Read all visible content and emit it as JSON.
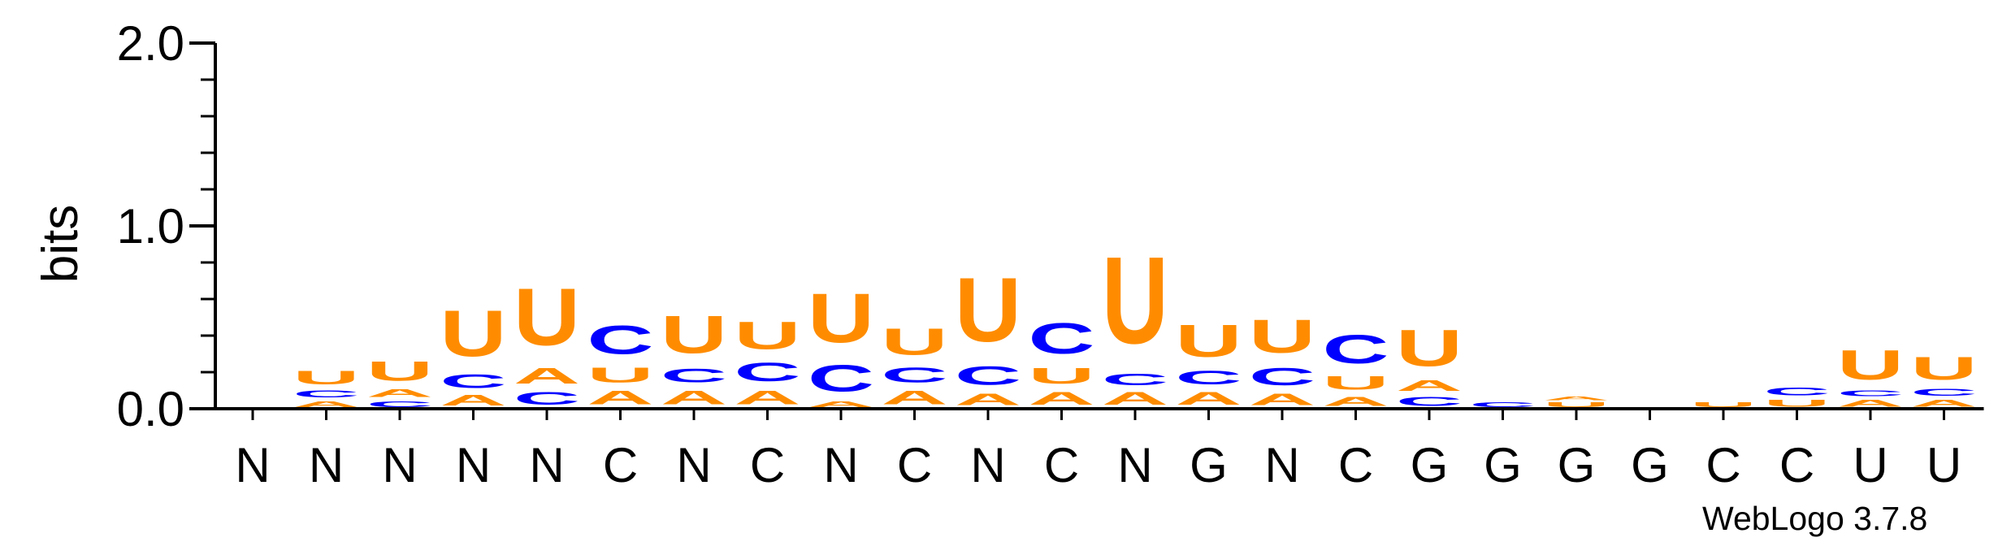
{
  "chart_data": {
    "type": "sequence-logo",
    "ylabel": "bits",
    "ylim": [
      0,
      2.0
    ],
    "yticks": [
      "0.0",
      "1.0",
      "2.0"
    ],
    "colors": {
      "A": "#ff8c00",
      "U": "#ff8c00",
      "C": "#0000ff",
      "G": "#ff8c00"
    },
    "positions": [
      {
        "label": "N",
        "stack": []
      },
      {
        "label": "N",
        "stack": [
          [
            "A",
            0.05
          ],
          [
            "C",
            0.06
          ],
          [
            "U",
            0.12
          ]
        ]
      },
      {
        "label": "N",
        "stack": [
          [
            "C",
            0.05
          ],
          [
            "A",
            0.07
          ],
          [
            "U",
            0.17
          ]
        ]
      },
      {
        "label": "N",
        "stack": [
          [
            "A",
            0.09
          ],
          [
            "C",
            0.12
          ],
          [
            "U",
            0.4
          ]
        ]
      },
      {
        "label": "N",
        "stack": [
          [
            "C",
            0.11
          ],
          [
            "A",
            0.14
          ],
          [
            "U",
            0.5
          ]
        ]
      },
      {
        "label": "C",
        "stack": [
          [
            "A",
            0.12
          ],
          [
            "U",
            0.13
          ],
          [
            "C",
            0.25
          ]
        ]
      },
      {
        "label": "N",
        "stack": [
          [
            "A",
            0.12
          ],
          [
            "C",
            0.12
          ],
          [
            "U",
            0.33
          ]
        ]
      },
      {
        "label": "C",
        "stack": [
          [
            "A",
            0.12
          ],
          [
            "C",
            0.16
          ],
          [
            "U",
            0.24
          ]
        ]
      },
      {
        "label": "N",
        "stack": [
          [
            "A",
            0.05
          ],
          [
            "C",
            0.23
          ],
          [
            "U",
            0.43
          ]
        ]
      },
      {
        "label": "C",
        "stack": [
          [
            "A",
            0.12
          ],
          [
            "C",
            0.13
          ],
          [
            "U",
            0.23
          ]
        ]
      },
      {
        "label": "N",
        "stack": [
          [
            "A",
            0.1
          ],
          [
            "C",
            0.16
          ],
          [
            "U",
            0.56
          ]
        ]
      },
      {
        "label": "C",
        "stack": [
          [
            "A",
            0.11
          ],
          [
            "U",
            0.14
          ],
          [
            "C",
            0.27
          ]
        ]
      },
      {
        "label": "N",
        "stack": [
          [
            "A",
            0.11
          ],
          [
            "C",
            0.1
          ],
          [
            "U",
            0.76
          ]
        ]
      },
      {
        "label": "G",
        "stack": [
          [
            "A",
            0.11
          ],
          [
            "C",
            0.12
          ],
          [
            "U",
            0.28
          ]
        ]
      },
      {
        "label": "N",
        "stack": [
          [
            "A",
            0.1
          ],
          [
            "C",
            0.15
          ],
          [
            "U",
            0.29
          ]
        ]
      },
      {
        "label": "C",
        "stack": [
          [
            "A",
            0.08
          ],
          [
            "U",
            0.12
          ],
          [
            "C",
            0.25
          ]
        ]
      },
      {
        "label": "G",
        "stack": [
          [
            "C",
            0.08
          ],
          [
            "A",
            0.09
          ],
          [
            "U",
            0.32
          ]
        ]
      },
      {
        "label": "G",
        "stack": [
          [
            "C",
            0.04
          ]
        ]
      },
      {
        "label": "G",
        "stack": [
          [
            "U",
            0.04
          ],
          [
            "A",
            0.03
          ]
        ]
      },
      {
        "label": "G",
        "stack": []
      },
      {
        "label": "C",
        "stack": [
          [
            "U",
            0.04
          ]
        ]
      },
      {
        "label": "C",
        "stack": [
          [
            "U",
            0.06
          ],
          [
            "C",
            0.07
          ]
        ]
      },
      {
        "label": "U",
        "stack": [
          [
            "A",
            0.06
          ],
          [
            "C",
            0.05
          ],
          [
            "U",
            0.26
          ]
        ]
      },
      {
        "label": "U",
        "stack": [
          [
            "A",
            0.06
          ],
          [
            "C",
            0.06
          ],
          [
            "U",
            0.2
          ]
        ]
      }
    ]
  },
  "footer": {
    "credit": "WebLogo 3.7.8"
  }
}
